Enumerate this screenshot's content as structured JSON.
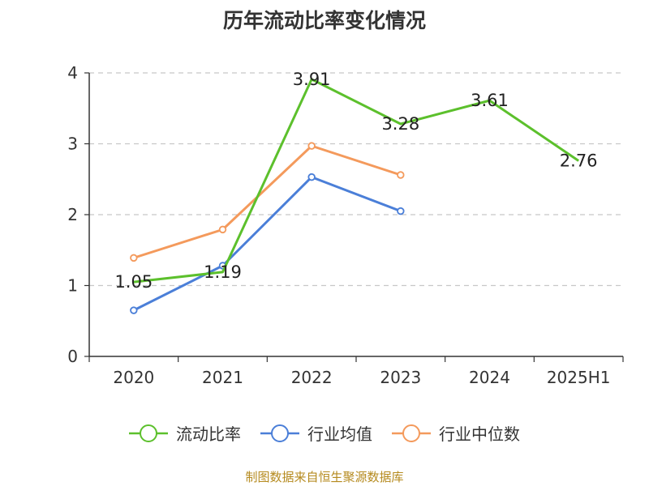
{
  "title": "历年流动比率变化情况",
  "source": "制图数据来自恒生聚源数据库",
  "colors": {
    "green": "#5cc02c",
    "blue": "#4b7fd8",
    "orange": "#f49a5c",
    "axis": "#333333",
    "grid": "#c8c8c8",
    "text": "#333333"
  },
  "chart_data": {
    "type": "line",
    "categories": [
      "2020",
      "2021",
      "2022",
      "2023",
      "2024",
      "2025H1"
    ],
    "ylim": [
      0,
      4
    ],
    "yticks": [
      "0",
      "1",
      "2",
      "3",
      "4"
    ],
    "grid": true,
    "legend_position": "bottom",
    "series": [
      {
        "name": "流动比率",
        "color": "#5cc02c",
        "values": [
          1.05,
          1.19,
          3.91,
          3.28,
          3.61,
          2.76
        ],
        "labels": [
          "1.05",
          "1.19",
          "3.91",
          "3.28",
          "3.61",
          "2.76"
        ],
        "show_labels": true,
        "symbol": false
      },
      {
        "name": "行业均值",
        "color": "#4b7fd8",
        "values": [
          0.65,
          1.28,
          2.53,
          2.05,
          null,
          null
        ],
        "show_labels": false,
        "symbol": true
      },
      {
        "name": "行业中位数",
        "color": "#f49a5c",
        "values": [
          1.39,
          1.79,
          2.97,
          2.56,
          null,
          null
        ],
        "show_labels": false,
        "symbol": true
      }
    ]
  }
}
